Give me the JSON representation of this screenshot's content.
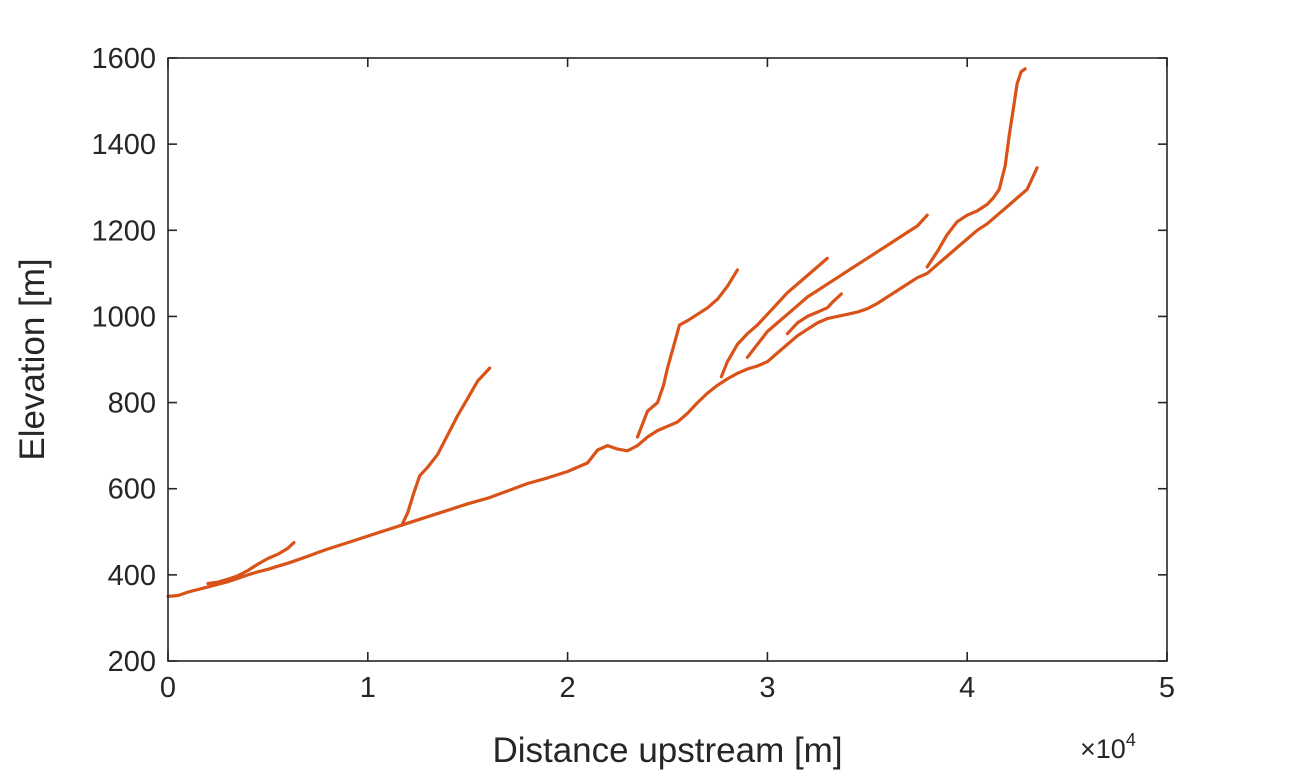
{
  "chart_data": {
    "type": "line",
    "title": "",
    "xlabel": "Distance upstream [m]",
    "ylabel": "Elevation [m]",
    "x_exponent_label": "×10",
    "x_exponent_power": "4",
    "xlim": [
      0,
      50000
    ],
    "ylim": [
      200,
      1600
    ],
    "xticks": [
      0,
      10000,
      20000,
      30000,
      40000,
      50000
    ],
    "xtick_labels": [
      "0",
      "1",
      "2",
      "3",
      "4",
      "5"
    ],
    "yticks": [
      200,
      400,
      600,
      800,
      1000,
      1200,
      1400,
      1600
    ],
    "ytick_labels": [
      "200",
      "400",
      "600",
      "800",
      "1000",
      "1200",
      "1400",
      "1600"
    ],
    "grid": false,
    "box": true,
    "line_color": "#D95319",
    "series": [
      {
        "x": [
          0,
          500,
          1000,
          1500,
          2000,
          2500,
          3000,
          3500,
          4000,
          4500,
          5000,
          5500,
          6000,
          6500,
          7000,
          7500,
          8000,
          9000,
          10000,
          11000,
          12000,
          13000,
          14000,
          15000,
          16000,
          17000,
          18000,
          19000,
          20000,
          21000,
          21500,
          22000,
          22500,
          23000,
          23500,
          24000,
          24500,
          25000,
          25500,
          26000,
          26500,
          27000,
          27500,
          28000,
          28500,
          29000,
          29500,
          30000,
          30500,
          31000,
          31500,
          32000,
          32500,
          33000,
          33500,
          34000,
          34500,
          35000,
          35500,
          36000,
          36500,
          37000,
          37500,
          38000,
          38500,
          39000,
          39500,
          40000,
          40500,
          41000,
          41500,
          42000,
          42500,
          43000,
          43500
        ],
        "y": [
          350,
          352,
          360,
          366,
          372,
          378,
          384,
          392,
          400,
          407,
          413,
          420,
          427,
          435,
          443,
          452,
          460,
          475,
          490,
          505,
          520,
          535,
          550,
          565,
          578,
          595,
          612,
          625,
          640,
          660,
          690,
          700,
          692,
          688,
          700,
          720,
          735,
          745,
          755,
          775,
          800,
          822,
          840,
          855,
          868,
          878,
          885,
          895,
          915,
          935,
          955,
          970,
          985,
          995,
          1000,
          1005,
          1010,
          1018,
          1030,
          1045,
          1060,
          1075,
          1090,
          1100,
          1120,
          1140,
          1160,
          1180,
          1200,
          1215,
          1235,
          1255,
          1275,
          1295,
          1345
        ]
      },
      {
        "x": [
          2000,
          2500,
          3000,
          3500,
          4000,
          4500,
          5000,
          5500,
          6000,
          6300
        ],
        "y": [
          380,
          383,
          390,
          398,
          410,
          425,
          438,
          448,
          462,
          475
        ]
      },
      {
        "x": [
          11700,
          12000,
          12300,
          12600,
          13000,
          13500,
          14000,
          14500,
          15000,
          15500,
          16100
        ],
        "y": [
          515,
          545,
          590,
          630,
          650,
          680,
          725,
          770,
          810,
          850,
          880
        ]
      },
      {
        "x": [
          23500,
          24000,
          24500,
          24800,
          25000,
          25300,
          25600,
          26000,
          26500,
          27000,
          27500,
          28000,
          28500
        ],
        "y": [
          720,
          780,
          800,
          840,
          880,
          930,
          980,
          990,
          1005,
          1020,
          1040,
          1070,
          1108
        ]
      },
      {
        "x": [
          27700,
          28000,
          28500,
          29000,
          29500,
          30000,
          30500,
          31000,
          31500,
          32000,
          32500,
          33000
        ],
        "y": [
          860,
          895,
          935,
          960,
          980,
          1005,
          1030,
          1055,
          1075,
          1095,
          1115,
          1135
        ]
      },
      {
        "x": [
          29000,
          29500,
          30000,
          30500,
          31000,
          31500,
          32000,
          32500,
          33000,
          33500,
          34000,
          34500,
          35000,
          35500,
          36000,
          36500,
          37000,
          37500,
          38000
        ],
        "y": [
          905,
          935,
          965,
          985,
          1005,
          1025,
          1045,
          1060,
          1075,
          1090,
          1105,
          1120,
          1135,
          1150,
          1165,
          1180,
          1195,
          1210,
          1235
        ]
      },
      {
        "x": [
          31000,
          31500,
          32000,
          32500,
          33000,
          33300,
          33700
        ],
        "y": [
          960,
          985,
          1000,
          1010,
          1020,
          1035,
          1052
        ]
      },
      {
        "x": [
          38000,
          38500,
          39000,
          39500,
          40000,
          40500,
          41000,
          41300,
          41600,
          41900,
          42100,
          42300,
          42500,
          42700,
          42900
        ],
        "y": [
          1115,
          1150,
          1190,
          1220,
          1235,
          1245,
          1260,
          1275,
          1295,
          1350,
          1420,
          1480,
          1540,
          1568,
          1575
        ]
      }
    ]
  }
}
